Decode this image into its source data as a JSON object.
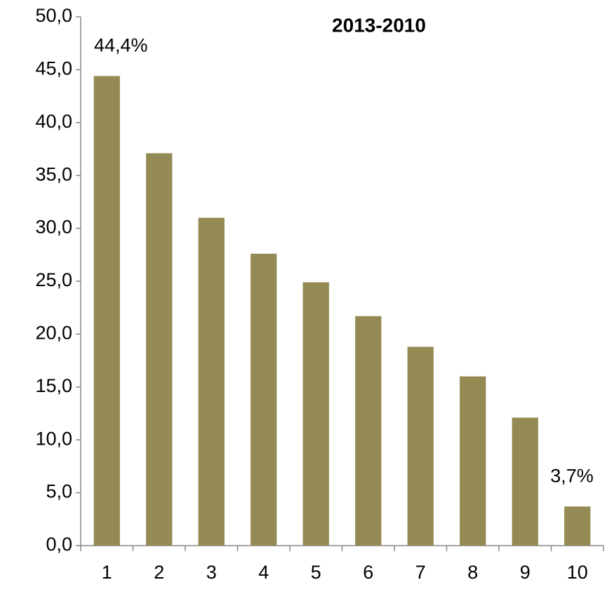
{
  "chart_data": {
    "type": "bar",
    "title": "2013-2010",
    "categories": [
      "1",
      "2",
      "3",
      "4",
      "5",
      "6",
      "7",
      "8",
      "9",
      "10"
    ],
    "values": [
      44.4,
      37.1,
      31.0,
      27.6,
      24.9,
      21.7,
      18.8,
      16.0,
      12.1,
      3.7
    ],
    "value_labels": [
      "44,4%",
      null,
      null,
      null,
      null,
      null,
      null,
      null,
      null,
      "3,7%"
    ],
    "color": "#948a54",
    "ylim": [
      0,
      50
    ],
    "yticks": [
      {
        "value": 0,
        "label": "0,0"
      },
      {
        "value": 5,
        "label": "5,0"
      },
      {
        "value": 10,
        "label": "10,0"
      },
      {
        "value": 15,
        "label": "15,0"
      },
      {
        "value": 20,
        "label": "20,0"
      },
      {
        "value": 25,
        "label": "25,0"
      },
      {
        "value": 30,
        "label": "30,0"
      },
      {
        "value": 35,
        "label": "35,0"
      },
      {
        "value": 40,
        "label": "40,0"
      },
      {
        "value": 45,
        "label": "45,0"
      },
      {
        "value": 50,
        "label": "50,0"
      }
    ],
    "grid": false
  }
}
